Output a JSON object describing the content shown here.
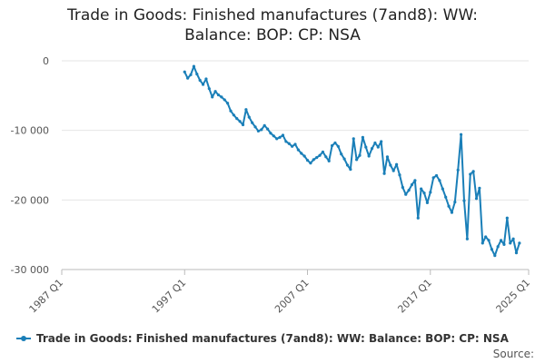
{
  "chart_data": {
    "type": "line",
    "title_line1": "Trade in Goods: Finished manufactures (7and8): WW:",
    "title_line2": "Balance: BOP: CP: NSA",
    "xlabel": "",
    "ylabel": "",
    "x_tick_labels": [
      "1987 Q1",
      "1997 Q1",
      "2007 Q1",
      "2017 Q1",
      "2025 Q1"
    ],
    "y_tick_labels": [
      "0",
      "-10 000",
      "-20 000",
      "-30 000"
    ],
    "y_ticks": [
      0,
      -10000,
      -20000,
      -30000
    ],
    "ylim": [
      -30000,
      0
    ],
    "xlim": [
      "1987 Q1",
      "2025 Q1"
    ],
    "grid": "horizontal",
    "legend_position": "bottom-left",
    "series": [
      {
        "name": "Trade in Goods: Finished manufactures (7and8): WW: Balance: BOP: CP: NSA",
        "color": "#1a7fb8",
        "start_period": "1997 Q1",
        "frequency": "quarterly",
        "values": [
          -1600,
          -2500,
          -2000,
          -800,
          -1900,
          -2800,
          -3400,
          -2600,
          -4000,
          -5200,
          -4400,
          -4900,
          -5200,
          -5600,
          -6100,
          -7200,
          -7800,
          -8300,
          -8700,
          -9200,
          -7000,
          -8100,
          -8900,
          -9500,
          -10100,
          -9900,
          -9300,
          -9800,
          -10400,
          -10800,
          -11200,
          -11000,
          -10700,
          -11600,
          -11900,
          -12300,
          -12000,
          -12800,
          -13300,
          -13700,
          -14300,
          -14700,
          -14200,
          -13900,
          -13600,
          -13100,
          -13800,
          -14400,
          -12200,
          -11800,
          -12300,
          -13400,
          -14100,
          -15000,
          -15600,
          -11200,
          -14200,
          -13600,
          -11000,
          -12400,
          -13700,
          -12600,
          -11800,
          -12400,
          -11600,
          -16200,
          -13800,
          -15000,
          -15800,
          -14900,
          -16400,
          -18200,
          -19200,
          -18600,
          -17800,
          -17200,
          -22600,
          -18400,
          -19000,
          -20400,
          -18900,
          -16800,
          -16500,
          -17200,
          -18400,
          -19600,
          -20900,
          -21800,
          -20300,
          -15700,
          -10600,
          -20100,
          -25600,
          -16300,
          -15900,
          -19800,
          -18300,
          -26200,
          -25300,
          -25800,
          -27100,
          -28000,
          -26700,
          -25800,
          -26400,
          -22600,
          -26200,
          -25600,
          -27600,
          -26200
        ]
      }
    ]
  },
  "legend": {
    "label": "Trade in Goods: Finished manufactures (7and8): WW: Balance: BOP: CP: NSA"
  },
  "footer": {
    "source_label": "Source:"
  }
}
